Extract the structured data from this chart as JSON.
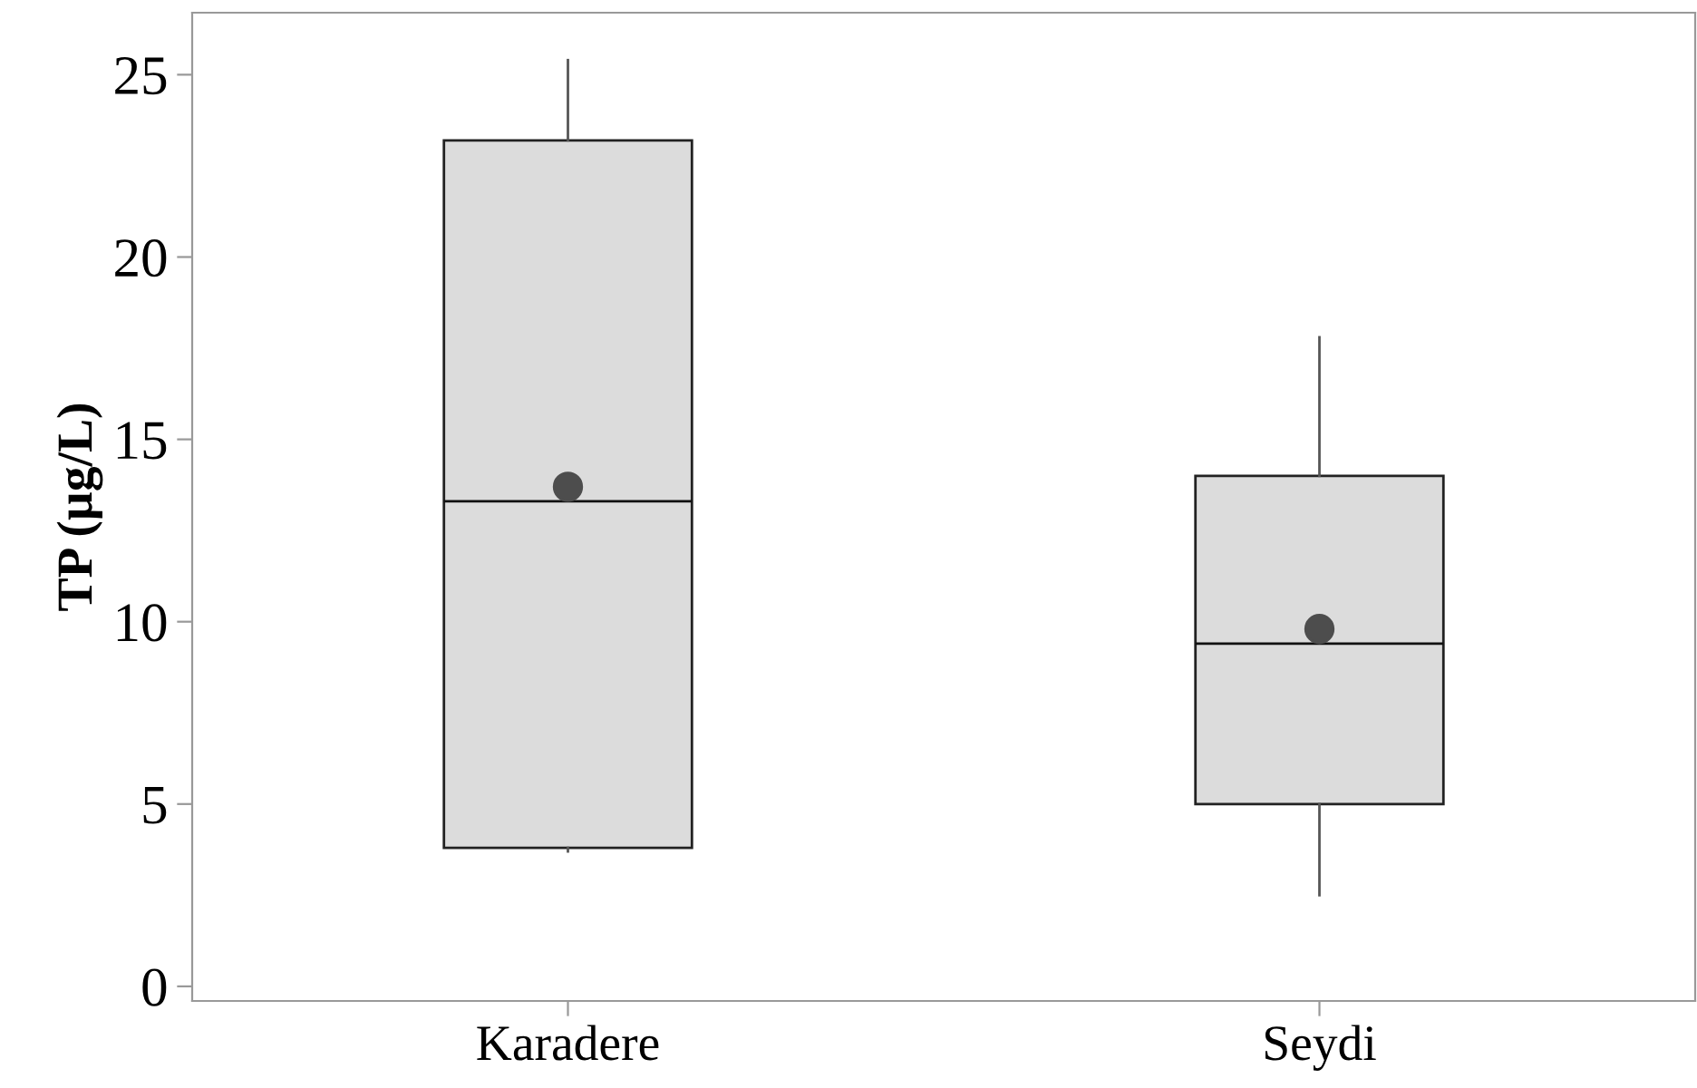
{
  "chart_data": {
    "type": "box",
    "ylabel": "TP (µg/L)",
    "categories": [
      "Karadere",
      "Seydi"
    ],
    "boxes": [
      {
        "low": 3.7,
        "q1": 3.8,
        "median": 13.3,
        "q3": 23.2,
        "high": 25.4,
        "mean": 13.7
      },
      {
        "low": 2.5,
        "q1": 5.0,
        "median": 9.4,
        "q3": 14.0,
        "high": 17.8,
        "mean": 9.8
      }
    ],
    "color": "#dcdcdc",
    "ylim": [
      -0.4,
      26.7
    ],
    "yticks": [
      0,
      5,
      10,
      15,
      20,
      25
    ],
    "grid": false,
    "marker": "circle"
  }
}
